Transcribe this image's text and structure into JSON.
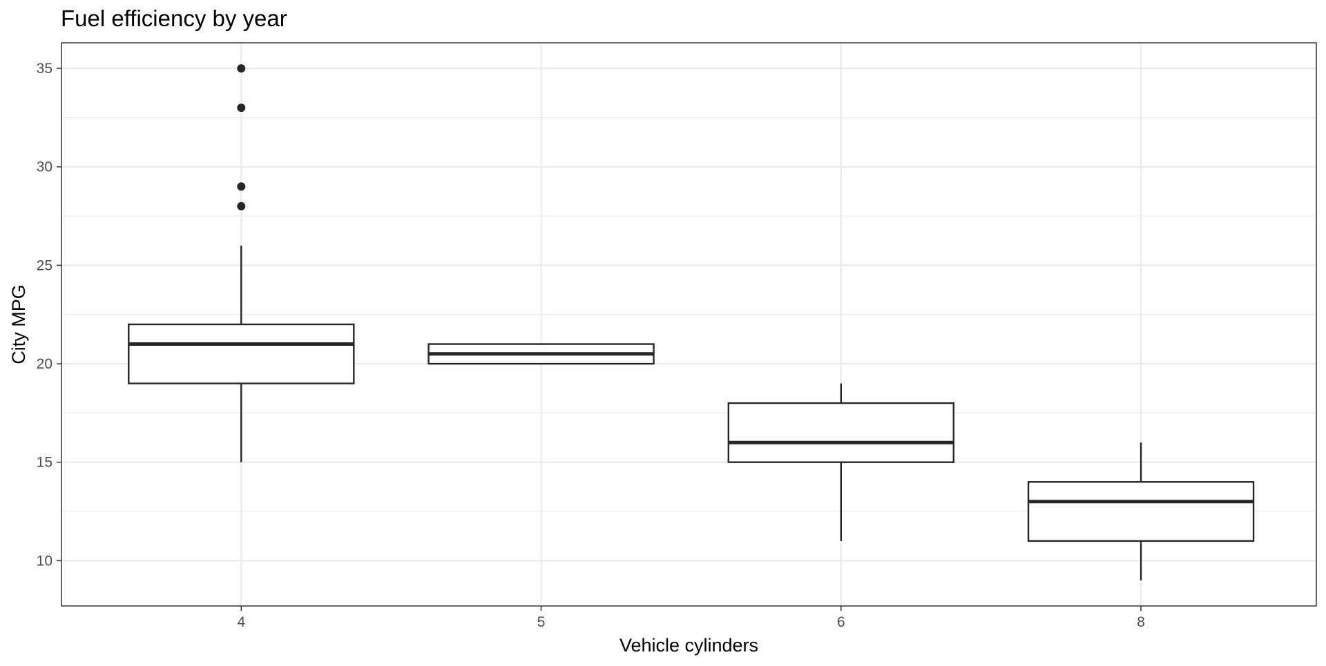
{
  "chart_data": {
    "type": "boxplot",
    "title": "Fuel efficiency by year",
    "xlabel": "Vehicle cylinders",
    "ylabel": "City MPG",
    "categories": [
      "4",
      "5",
      "6",
      "8"
    ],
    "boxes": [
      {
        "category": "4",
        "whisker_low": 15,
        "q1": 19,
        "median": 21,
        "q3": 22,
        "whisker_high": 26,
        "outliers": [
          35,
          33,
          29,
          28
        ]
      },
      {
        "category": "5",
        "whisker_low": 20,
        "q1": 20,
        "median": 20.5,
        "q3": 21,
        "whisker_high": 21,
        "outliers": []
      },
      {
        "category": "6",
        "whisker_low": 11,
        "q1": 15,
        "median": 16,
        "q3": 18,
        "whisker_high": 19,
        "outliers": []
      },
      {
        "category": "8",
        "whisker_low": 9,
        "q1": 11,
        "median": 13,
        "q3": 14,
        "whisker_high": 16,
        "outliers": []
      }
    ],
    "ylim": [
      7.7,
      36.3
    ],
    "yticks": [
      10,
      15,
      20,
      25,
      30,
      35
    ],
    "yticks_minor": [
      12.5,
      17.5,
      22.5,
      27.5,
      32.5
    ],
    "grid": true,
    "colors": {
      "box_stroke": "#262626",
      "box_fill": "#ffffff",
      "grid": "#ebebeb",
      "panel_border": "#333333",
      "tick_label": "#4d4d4d"
    }
  }
}
